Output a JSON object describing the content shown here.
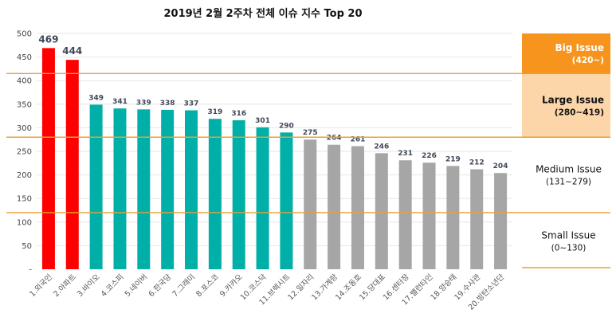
{
  "chart_data": {
    "type": "bar",
    "title": "2019년 2월 2주차 전체 이슈 지수 Top 20",
    "categories": [
      "1.외국인",
      "2.아파트",
      "3.바이오",
      "4.코스피",
      "5.네이버",
      "6.한국당",
      "7.그래미",
      "8.포스코",
      "9.카카오",
      "10.코스닥",
      "11.브렉시트",
      "12.일자리",
      "13.가계랑",
      "14.조동호",
      "15.당대표",
      "16.센터장",
      "17.밸런타인",
      "18.양승태",
      "19.수사관",
      "20.빙탄소년단"
    ],
    "values": [
      469,
      444,
      349,
      341,
      339,
      338,
      337,
      319,
      316,
      301,
      290,
      275,
      264,
      261,
      246,
      231,
      226,
      219,
      212,
      204
    ],
    "value_labels": [
      "469",
      "444",
      "349",
      "341",
      "339",
      "338",
      "337",
      "319",
      "316",
      "301",
      "290",
      "275",
      "264",
      "261",
      "246",
      "231",
      "226",
      "219",
      "212",
      "204"
    ],
    "bar_colors": [
      "#ff0000",
      "#ff0000",
      "#00b0a8",
      "#00b0a8",
      "#00b0a8",
      "#00b0a8",
      "#00b0a8",
      "#00b0a8",
      "#00b0a8",
      "#00b0a8",
      "#00b0a8",
      "#a6a6a6",
      "#a6a6a6",
      "#a6a6a6",
      "#a6a6a6",
      "#a6a6a6",
      "#a6a6a6",
      "#a6a6a6",
      "#a6a6a6",
      "#a6a6a6"
    ],
    "ylim": [
      0,
      500
    ],
    "yticks": [
      0,
      50,
      100,
      150,
      200,
      250,
      300,
      350,
      400,
      450,
      500
    ],
    "ytick_labels": [
      "-",
      "50",
      "100",
      "150",
      "200",
      "250",
      "300",
      "350",
      "400",
      "450",
      "500"
    ],
    "grid": true,
    "threshold_lines": [
      415,
      280,
      120
    ],
    "line_color": "#e8a033",
    "bands": [
      {
        "name": "Big Issue",
        "range": "(420~)",
        "fill": "#f7941d",
        "y_top": 500,
        "y_bottom": 415,
        "text_style": "white"
      },
      {
        "name": "Large Issue",
        "range": "(280~419)",
        "fill": "#fcd5a8",
        "y_top": 415,
        "y_bottom": 280,
        "text_style": "bold"
      },
      {
        "name": "Medium Issue",
        "range": "(131~279)",
        "fill": "#ffffff",
        "y_top": 280,
        "y_bottom": 120,
        "text_style": "normal"
      },
      {
        "name": "Small Issue",
        "range": "(0~130)",
        "fill": "#ffffff",
        "y_top": 120,
        "y_bottom": 0,
        "text_style": "normal"
      }
    ]
  }
}
